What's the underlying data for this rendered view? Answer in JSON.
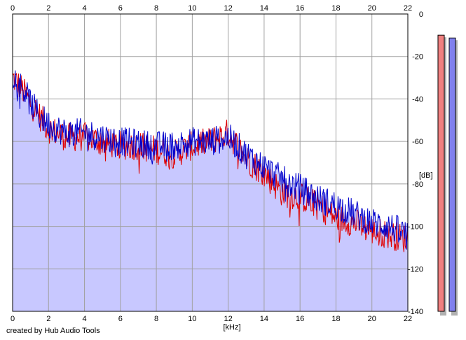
{
  "chart_data": {
    "type": "area",
    "xlabel": "[kHz]",
    "ylabel": "[dB]",
    "xlim": [
      0,
      22
    ],
    "ylim": [
      -140,
      0
    ],
    "x_ticks": [
      "0",
      "2",
      "4",
      "6",
      "8",
      "10",
      "12",
      "14",
      "16",
      "18",
      "20",
      "22"
    ],
    "x_ticks_bottom": [
      "0",
      "2",
      "4",
      "6",
      "8",
      "10",
      "12",
      "14",
      "16",
      "18",
      "20",
      "22"
    ],
    "y_ticks": [
      "0",
      "-20",
      "-40",
      "-60",
      "-80",
      "-100",
      "-120",
      "-140"
    ],
    "grid": true,
    "series": [
      {
        "color": "#e00000",
        "x": [
          0.0,
          0.5,
          1.0,
          1.5,
          2.0,
          3.0,
          4.0,
          5.0,
          6.0,
          7.0,
          8.0,
          9.0,
          10.0,
          11.0,
          12.0,
          13.0,
          14.0,
          15.0,
          16.0,
          17.0,
          18.0,
          19.0,
          20.0,
          21.0,
          22.0
        ],
        "values": [
          -30,
          -35,
          -42,
          -48,
          -54,
          -58,
          -58,
          -60,
          -62,
          -62,
          -64,
          -66,
          -62,
          -60,
          -56,
          -68,
          -75,
          -84,
          -86,
          -90,
          -96,
          -98,
          -102,
          -104,
          -106
        ]
      },
      {
        "color": "#0000cc",
        "x": [
          0.0,
          0.5,
          1.0,
          1.5,
          2.0,
          3.0,
          4.0,
          5.0,
          6.0,
          7.0,
          8.0,
          9.0,
          10.0,
          11.0,
          12.0,
          13.0,
          14.0,
          15.0,
          16.0,
          17.0,
          18.0,
          19.0,
          20.0,
          21.0,
          22.0
        ],
        "values": [
          -28,
          -34,
          -42,
          -48,
          -52,
          -56,
          -56,
          -58,
          -60,
          -61,
          -62,
          -62,
          -60,
          -60,
          -58,
          -66,
          -72,
          -78,
          -82,
          -87,
          -90,
          -94,
          -98,
          -100,
          -104
        ]
      }
    ],
    "fill_color": "#c8c8ff"
  },
  "level_meters": [
    {
      "color": "#f08080",
      "level": 0.97
    },
    {
      "color": "#8080ee",
      "level": 0.96
    }
  ],
  "footer": {
    "credit": "created by Hub Audio Tools"
  }
}
